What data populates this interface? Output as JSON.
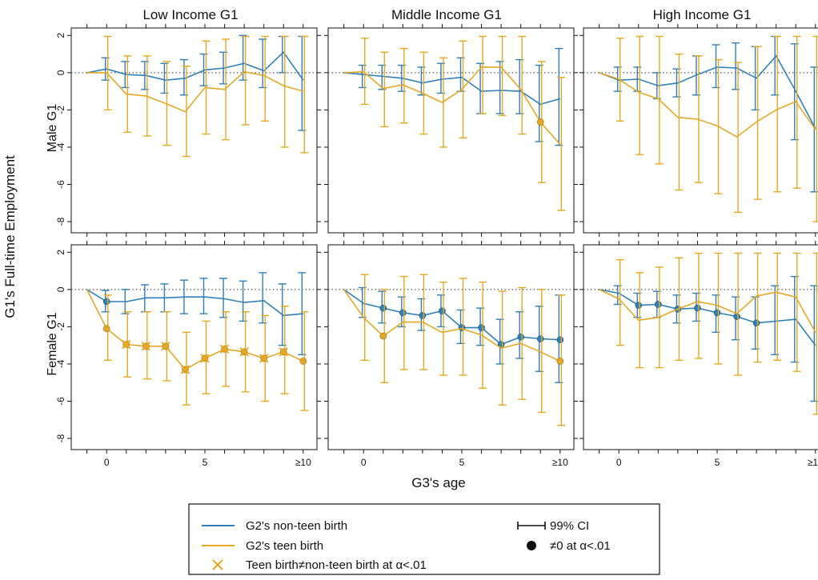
{
  "chart_data": {
    "type": "line",
    "title": "",
    "ylabel": "G1's Full-time Employment",
    "xlabel": "G3's age",
    "column_titles": [
      "Low Income G1",
      "Middle Income G1",
      "High Income G1"
    ],
    "row_labels": [
      "Male G1",
      "Female G1"
    ],
    "x": [
      -1,
      0,
      1,
      2,
      3,
      4,
      5,
      6,
      7,
      8,
      9,
      10
    ],
    "x_tick_values": [
      0,
      5,
      10
    ],
    "x_tick_labels": [
      "0",
      "5",
      "≥10"
    ],
    "xlim": [
      -1.8,
      10.7
    ],
    "y_tick_values": [
      2,
      0,
      -2,
      -4,
      -6,
      -8
    ],
    "y_tick_labels": [
      "2",
      "0",
      "-2",
      "-4",
      "-6",
      "-8"
    ],
    "ylim": [
      -8.6,
      2.4
    ],
    "reference_line_y": 0,
    "colors": {
      "non_teen": "#2F7FB8",
      "teen": "#E5A823",
      "dotted": "#555555"
    },
    "legend": {
      "placement": "bottom-center",
      "non_teen_label": "G2's non-teen birth",
      "teen_label": "G2's teen birth",
      "diff_label": "Teen birth≠non-teen birth at α<.01",
      "ci_label": "99% CI",
      "sig_label": "≠0 at α<.01"
    },
    "panels": [
      {
        "row": 0,
        "col": 0,
        "non_teen": {
          "values": [
            0,
            0.2,
            -0.1,
            -0.15,
            -0.4,
            -0.3,
            0.15,
            0.25,
            0.5,
            0.1,
            1.1,
            -0.4
          ],
          "lower": [
            null,
            -0.4,
            -0.8,
            -0.9,
            -1.1,
            -1.2,
            -0.7,
            -0.6,
            -0.4,
            -0.8,
            0,
            -3.1
          ],
          "upper": [
            null,
            0.8,
            0.6,
            0.6,
            0.5,
            0.7,
            1.0,
            1.1,
            2.0,
            1.8,
            1.95,
            1.95
          ],
          "significant": []
        },
        "teen": {
          "values": [
            0,
            0,
            -1.15,
            -1.25,
            -1.65,
            -2.1,
            -0.8,
            -0.9,
            0.05,
            -0.15,
            -0.7,
            -1.0
          ],
          "lower": [
            null,
            -2.0,
            -3.2,
            -3.4,
            -3.9,
            -4.5,
            -3.3,
            -3.6,
            -2.8,
            -2.6,
            -4.0,
            -4.3
          ],
          "upper": [
            null,
            1.95,
            0.9,
            0.9,
            0.6,
            0.35,
            1.7,
            1.8,
            1.95,
            1.95,
            1.95,
            1.95
          ],
          "significant": [],
          "differs": []
        }
      },
      {
        "row": 0,
        "col": 1,
        "non_teen": {
          "values": [
            0,
            -0.1,
            -0.2,
            -0.3,
            -0.55,
            -0.35,
            -0.25,
            -1.0,
            -0.95,
            -1.0,
            -1.7,
            -1.4
          ],
          "lower": [
            null,
            -0.8,
            -0.9,
            -1.0,
            -1.2,
            -1.1,
            -1.0,
            -2.2,
            -2.2,
            -2.2,
            -3.7,
            -3.9
          ],
          "upper": [
            null,
            0.4,
            0.4,
            0.4,
            0.3,
            0.5,
            0.8,
            0.5,
            0.6,
            0.7,
            0.4,
            1.3
          ],
          "significant": []
        },
        "teen": {
          "values": [
            0,
            0.05,
            -0.85,
            -0.65,
            -1.1,
            -1.6,
            -0.9,
            0.3,
            0.3,
            -0.9,
            -2.65,
            -3.85
          ],
          "lower": [
            null,
            -1.7,
            -2.9,
            -2.7,
            -3.3,
            -4.0,
            -3.5,
            -2.2,
            -2.3,
            -3.3,
            -5.9,
            -7.4
          ],
          "upper": [
            null,
            1.85,
            1.1,
            1.3,
            1.1,
            0.8,
            1.7,
            1.95,
            1.95,
            1.95,
            0.6,
            -0.25
          ],
          "significant": [
            10
          ],
          "differs": []
        }
      },
      {
        "row": 0,
        "col": 2,
        "non_teen": {
          "values": [
            0,
            -0.4,
            -0.35,
            -0.7,
            -0.55,
            -0.1,
            0.3,
            0.25,
            -0.3,
            0.9,
            -1.0,
            -3.0
          ],
          "lower": [
            null,
            -1.0,
            -1.0,
            -1.4,
            -1.3,
            -1.2,
            -0.8,
            -0.9,
            -2.0,
            -1.2,
            -3.6,
            -6.4
          ],
          "upper": [
            null,
            0.3,
            0.3,
            0.0,
            0.2,
            0.9,
            1.5,
            1.6,
            1.4,
            1.95,
            1.55,
            0.3
          ],
          "significant": []
        },
        "teen": {
          "values": [
            0,
            -0.35,
            -1.05,
            -1.4,
            -2.4,
            -2.5,
            -2.85,
            -3.45,
            -2.65,
            -2.0,
            -1.55,
            -3.05
          ],
          "lower": [
            null,
            -2.6,
            -4.4,
            -4.9,
            -6.3,
            -5.9,
            -6.5,
            -7.5,
            -6.8,
            -6.4,
            -6.2,
            -8.0
          ],
          "upper": [
            null,
            1.85,
            1.95,
            1.95,
            1.0,
            0.9,
            0.7,
            0.55,
            1.4,
            1.95,
            1.95,
            1.95
          ],
          "significant": [],
          "differs": []
        }
      },
      {
        "row": 1,
        "col": 0,
        "non_teen": {
          "values": [
            0,
            -0.65,
            -0.65,
            -0.45,
            -0.45,
            -0.4,
            -0.4,
            -0.5,
            -0.7,
            -0.6,
            -1.4,
            -1.3
          ],
          "lower": [
            null,
            -1.2,
            -1.3,
            -1.2,
            -1.2,
            -1.3,
            -1.3,
            -1.5,
            -1.7,
            -1.8,
            -3.0,
            -3.5
          ],
          "upper": [
            null,
            -0.05,
            0.0,
            0.25,
            0.3,
            0.5,
            0.6,
            0.6,
            0.45,
            0.9,
            0.3,
            0.9
          ],
          "significant": [
            1
          ]
        },
        "teen": {
          "values": [
            0,
            -2.1,
            -2.95,
            -3.05,
            -3.05,
            -4.3,
            -3.7,
            -3.2,
            -3.35,
            -3.7,
            -3.35,
            -3.85
          ],
          "lower": [
            null,
            -3.8,
            -4.7,
            -4.8,
            -4.9,
            -6.2,
            -5.6,
            -5.2,
            -5.5,
            -6.0,
            -5.6,
            -6.5
          ],
          "upper": [
            null,
            -0.3,
            -1.2,
            -1.2,
            -1.2,
            -2.3,
            -1.7,
            -1.2,
            -1.2,
            -1.4,
            -0.9,
            -1.2
          ],
          "significant": [
            1,
            2,
            3,
            4,
            5,
            6,
            7,
            8,
            9,
            10,
            11
          ],
          "differs": [
            2,
            3,
            4,
            5,
            6,
            7,
            8,
            9,
            10
          ]
        }
      },
      {
        "row": 1,
        "col": 1,
        "non_teen": {
          "values": [
            0,
            -0.75,
            -1.0,
            -1.25,
            -1.4,
            -1.15,
            -2.05,
            -2.05,
            -2.95,
            -2.55,
            -2.65,
            -2.7
          ],
          "lower": [
            null,
            -1.5,
            -1.8,
            -2.0,
            -2.2,
            -2.0,
            -2.9,
            -3.0,
            -4.0,
            -3.7,
            -4.4,
            -5.0
          ],
          "upper": [
            null,
            0.1,
            -0.1,
            -0.4,
            -0.5,
            -0.3,
            -1.1,
            -1.0,
            -1.6,
            -1.2,
            -0.9,
            -0.3
          ],
          "significant": [
            2,
            3,
            4,
            5,
            6,
            7,
            8,
            9,
            10,
            11
          ]
        },
        "teen": {
          "values": [
            0,
            -1.5,
            -2.5,
            -1.75,
            -1.75,
            -2.3,
            -2.1,
            -2.45,
            -3.15,
            -2.9,
            -3.35,
            -3.85
          ],
          "lower": [
            null,
            -3.8,
            -5.0,
            -4.3,
            -4.3,
            -4.6,
            -4.6,
            -5.3,
            -6.2,
            -5.9,
            -6.6,
            -7.3
          ],
          "upper": [
            null,
            0.8,
            0.0,
            0.7,
            0.8,
            0.4,
            0.6,
            0.4,
            -0.1,
            0.1,
            0.0,
            -0.3
          ],
          "significant": [
            2,
            11
          ],
          "differs": []
        }
      },
      {
        "row": 1,
        "col": 2,
        "non_teen": {
          "values": [
            0,
            -0.2,
            -0.85,
            -0.8,
            -1.05,
            -1.0,
            -1.25,
            -1.45,
            -1.8,
            -1.7,
            -1.6,
            -3.0
          ],
          "lower": [
            null,
            -0.8,
            -1.5,
            -1.5,
            -1.8,
            -1.7,
            -2.3,
            -2.7,
            -3.2,
            -3.5,
            -3.9,
            -6.0
          ],
          "upper": [
            null,
            0.2,
            -0.2,
            -0.1,
            -0.3,
            -0.2,
            -0.3,
            -0.4,
            -0.4,
            0.2,
            0.7,
            0.2
          ],
          "significant": [
            2,
            3,
            4,
            5,
            6,
            7,
            8
          ]
        },
        "teen": {
          "values": [
            0,
            -0.5,
            -1.65,
            -1.5,
            -1.05,
            -0.65,
            -0.85,
            -1.3,
            -0.35,
            -0.15,
            -0.4,
            -2.3
          ],
          "lower": [
            null,
            -3.0,
            -4.2,
            -4.2,
            -3.8,
            -3.7,
            -4.0,
            -4.6,
            -3.9,
            -3.8,
            -4.4,
            -6.7
          ],
          "upper": [
            null,
            1.6,
            0.9,
            1.2,
            1.7,
            1.95,
            1.95,
            1.95,
            1.95,
            1.95,
            1.95,
            1.95
          ],
          "significant": [],
          "differs": []
        }
      }
    ]
  }
}
